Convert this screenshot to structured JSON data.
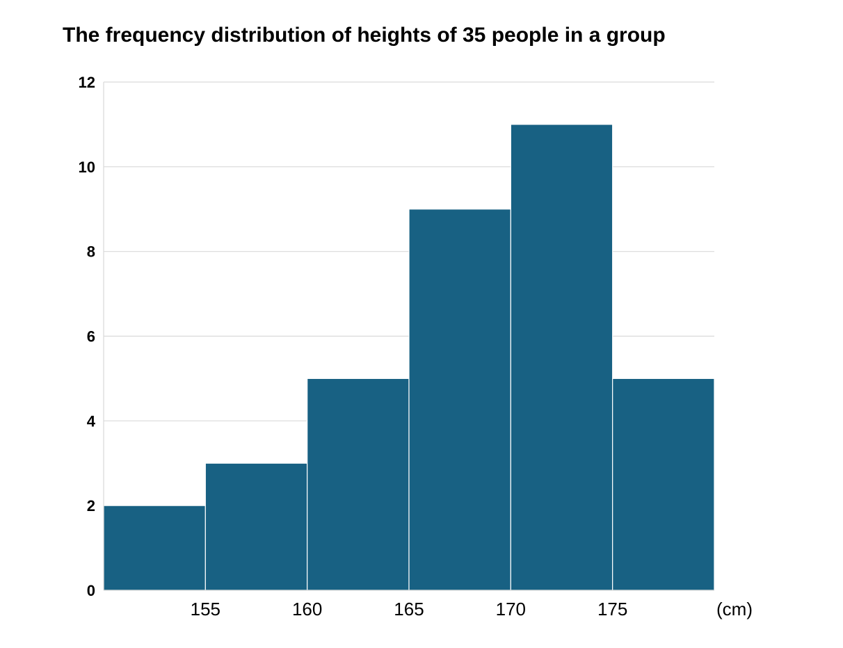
{
  "chart_data": {
    "type": "bar",
    "subtype": "histogram",
    "title": "The frequency distribution of heights of 35 people in a group",
    "xlabel": "(cm)",
    "ylabel": "",
    "bins": [
      {
        "from": 150,
        "to": 155,
        "value": 2
      },
      {
        "from": 155,
        "to": 160,
        "value": 3
      },
      {
        "from": 160,
        "to": 165,
        "value": 5
      },
      {
        "from": 165,
        "to": 170,
        "value": 9
      },
      {
        "from": 170,
        "to": 175,
        "value": 11
      },
      {
        "from": 175,
        "to": 180,
        "value": 5
      }
    ],
    "x_ticks": [
      "155",
      "160",
      "165",
      "170",
      "175"
    ],
    "x_tick_values": [
      155,
      160,
      165,
      170,
      175
    ],
    "y_ticks": [
      "0",
      "2",
      "4",
      "6",
      "8",
      "10",
      "12"
    ],
    "y_tick_values": [
      0,
      2,
      4,
      6,
      8,
      10,
      12
    ],
    "xlim": [
      150,
      180
    ],
    "ylim": [
      0,
      12
    ],
    "grid": true,
    "legend": "none",
    "colors": {
      "bar": "#186183",
      "bar_edge": "#ffffff",
      "grid": "#d9d9d9",
      "axis": "#d9d9d9",
      "text": "#000000"
    }
  }
}
